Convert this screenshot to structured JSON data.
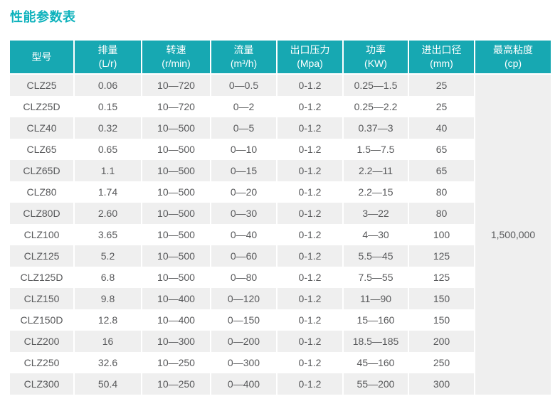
{
  "page": {
    "title": "性能参数表"
  },
  "colors": {
    "header_teal": "#17a8b2",
    "title_teal": "#0db2bc",
    "alt_row_gray": "#efefef",
    "body_text_gray": "#58595b",
    "header_text": "#ffffff"
  },
  "table": {
    "columns": [
      {
        "name": "型号",
        "unit": ""
      },
      {
        "name": "排量",
        "unit": "(L/r)"
      },
      {
        "name": "转速",
        "unit": "(r/min)"
      },
      {
        "name": "流量",
        "unit": "(m³/h)"
      },
      {
        "name": "出口压力",
        "unit": "(Mpa)"
      },
      {
        "name": "功率",
        "unit": "(KW)"
      },
      {
        "name": "进出口径",
        "unit": "(mm)"
      },
      {
        "name": "最高粘度",
        "unit": "(cp)"
      }
    ],
    "rows": [
      [
        "CLZ25",
        "0.06",
        "10—720",
        "0—0.5",
        "0-1.2",
        "0.25—1.5",
        "25"
      ],
      [
        "CLZ25D",
        "0.15",
        "10—720",
        "0—2",
        "0-1.2",
        "0.25—2.2",
        "25"
      ],
      [
        "CLZ40",
        "0.32",
        "10—500",
        "0—5",
        "0-1.2",
        "0.37—3",
        "40"
      ],
      [
        "CLZ65",
        "0.65",
        "10—500",
        "0—10",
        "0-1.2",
        "1.5—7.5",
        "65"
      ],
      [
        "CLZ65D",
        "1.1",
        "10—500",
        "0—15",
        "0-1.2",
        "2.2—11",
        "65"
      ],
      [
        "CLZ80",
        "1.74",
        "10—500",
        "0—20",
        "0-1.2",
        "2.2—15",
        "80"
      ],
      [
        "CLZ80D",
        "2.60",
        "10—500",
        "0—30",
        "0-1.2",
        "3—22",
        "80"
      ],
      [
        "CLZ100",
        "3.65",
        "10—500",
        "0—40",
        "0-1.2",
        "4—30",
        "100"
      ],
      [
        "CLZ125",
        "5.2",
        "10—500",
        "0—60",
        "0-1.2",
        "5.5—45",
        "125"
      ],
      [
        "CLZ125D",
        "6.8",
        "10—500",
        "0—80",
        "0-1.2",
        "7.5—55",
        "125"
      ],
      [
        "CLZ150",
        "9.8",
        "10—400",
        "0—120",
        "0-1.2",
        "11—90",
        "150"
      ],
      [
        "CLZ150D",
        "12.8",
        "10—400",
        "0—150",
        "0-1.2",
        "15—160",
        "150"
      ],
      [
        "CLZ200",
        "16",
        "10—300",
        "0—200",
        "0-1.2",
        "18.5—185",
        "200"
      ],
      [
        "CLZ250",
        "32.6",
        "10—250",
        "0—300",
        "0-1.2",
        "45—160",
        "250"
      ],
      [
        "CLZ300",
        "50.4",
        "10—250",
        "0—400",
        "0-1.2",
        "55—200",
        "300"
      ]
    ],
    "max_viscosity_value": "1,500,000"
  }
}
